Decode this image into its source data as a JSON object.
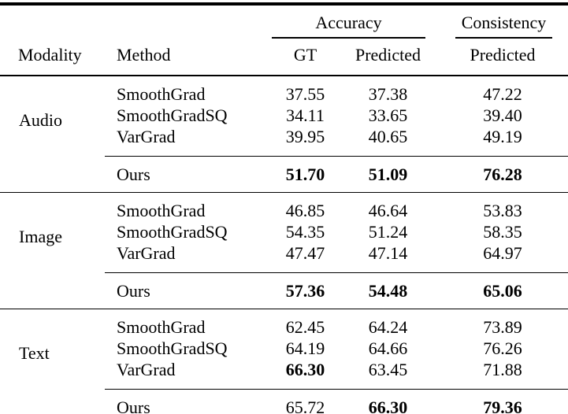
{
  "table": {
    "groups": [
      {
        "label": "Accuracy"
      },
      {
        "label": "Consistency"
      }
    ],
    "header": {
      "modality": "Modality",
      "method": "Method",
      "gt": "GT",
      "predicted": "Predicted",
      "consistency_predicted": "Predicted"
    },
    "sections": [
      {
        "modality": "Audio",
        "rows": [
          {
            "method": "SmoothGrad",
            "gt": "37.55",
            "pred": "37.38",
            "cons": "47.22",
            "bold": []
          },
          {
            "method": "SmoothGradSQ",
            "gt": "34.11",
            "pred": "33.65",
            "cons": "39.40",
            "bold": []
          },
          {
            "method": "VarGrad",
            "gt": "39.95",
            "pred": "40.65",
            "cons": "49.19",
            "bold": []
          }
        ],
        "ours": {
          "method": "Ours",
          "gt": "51.70",
          "pred": "51.09",
          "cons": "76.28",
          "bold": [
            "gt",
            "pred",
            "cons"
          ]
        }
      },
      {
        "modality": "Image",
        "rows": [
          {
            "method": "SmoothGrad",
            "gt": "46.85",
            "pred": "46.64",
            "cons": "53.83",
            "bold": []
          },
          {
            "method": "SmoothGradSQ",
            "gt": "54.35",
            "pred": "51.24",
            "cons": "58.35",
            "bold": []
          },
          {
            "method": "VarGrad",
            "gt": "47.47",
            "pred": "47.14",
            "cons": "64.97",
            "bold": []
          }
        ],
        "ours": {
          "method": "Ours",
          "gt": "57.36",
          "pred": "54.48",
          "cons": "65.06",
          "bold": [
            "gt",
            "pred",
            "cons"
          ]
        }
      },
      {
        "modality": "Text",
        "rows": [
          {
            "method": "SmoothGrad",
            "gt": "62.45",
            "pred": "64.24",
            "cons": "73.89",
            "bold": []
          },
          {
            "method": "SmoothGradSQ",
            "gt": "64.19",
            "pred": "64.66",
            "cons": "76.26",
            "bold": []
          },
          {
            "method": "VarGrad",
            "gt": "66.30",
            "pred": "63.45",
            "cons": "71.88",
            "bold": [
              "gt"
            ]
          }
        ],
        "ours": {
          "method": "Ours",
          "gt": "65.72",
          "pred": "66.30",
          "cons": "79.36",
          "bold": [
            "pred",
            "cons"
          ]
        }
      }
    ]
  }
}
